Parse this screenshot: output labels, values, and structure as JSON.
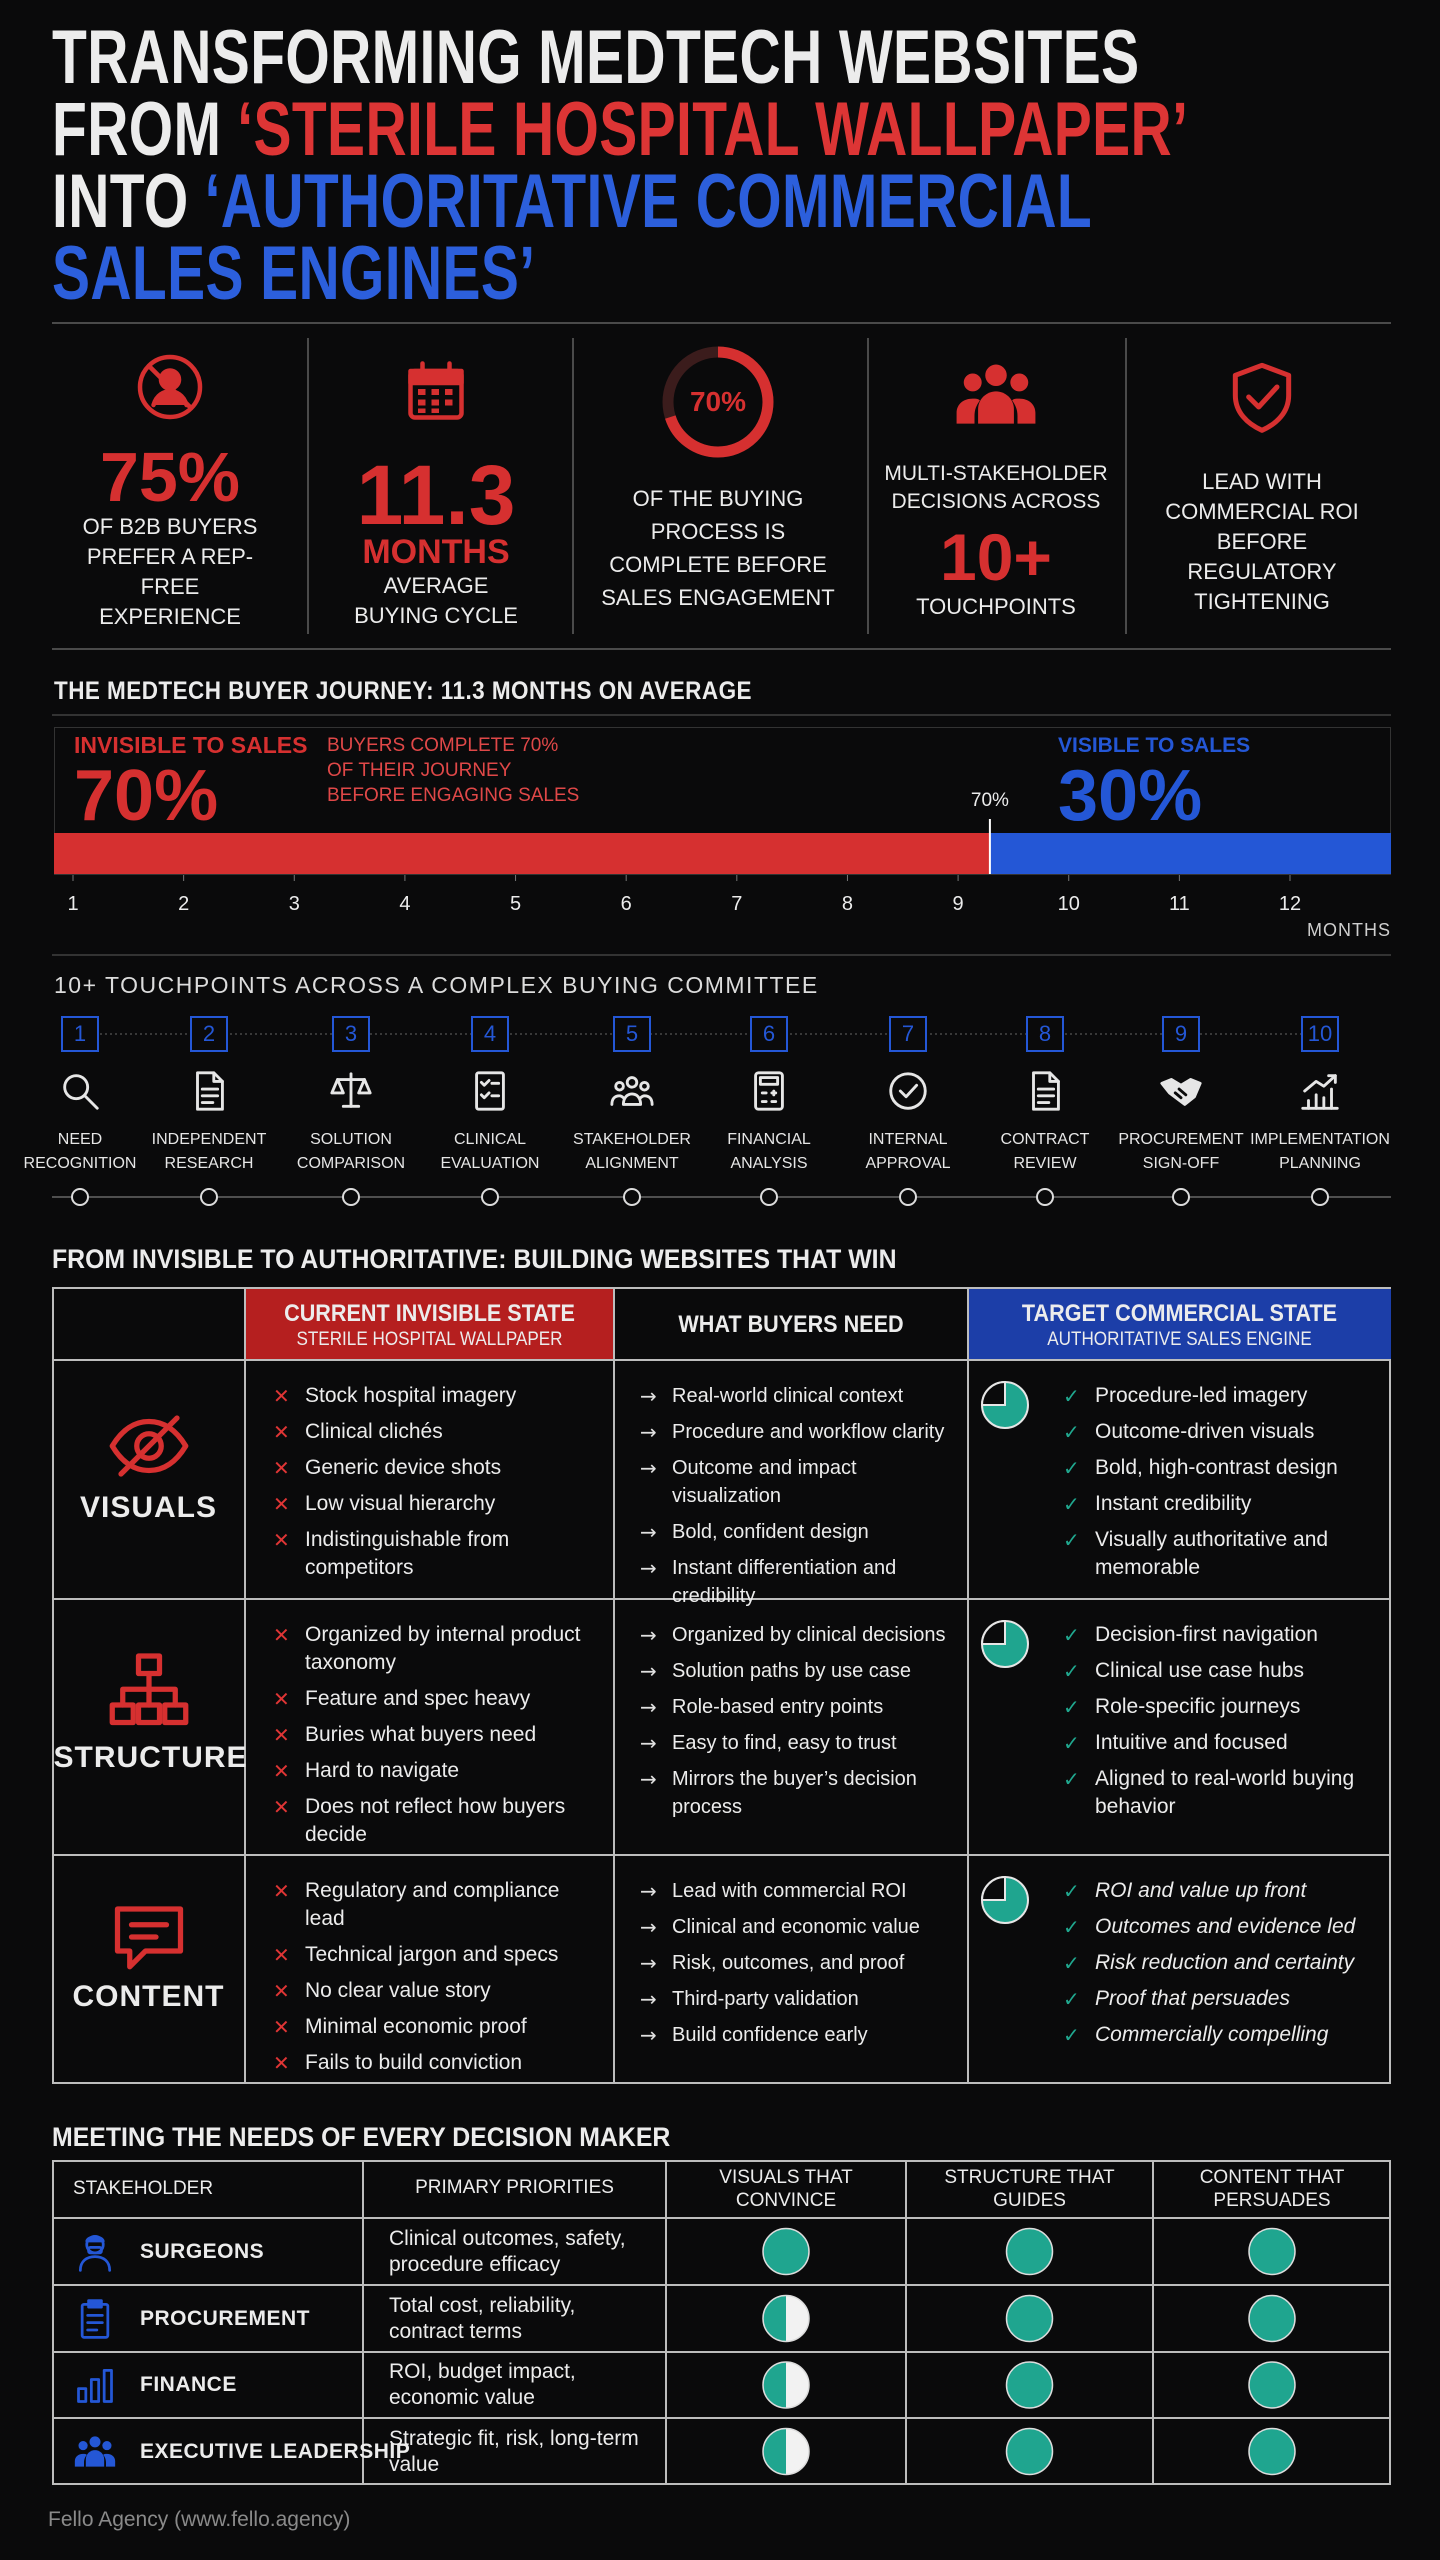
{
  "title": [
    {
      "text": "TRANSFORMING MEDTECH WEBSITES FROM",
      "color": "#ececec"
    },
    {
      "text": "‘STERILE HOSPITAL WALLPAPER’",
      "color": "#dd3535"
    },
    {
      "text": "INTO",
      "color": "#ececec"
    },
    {
      "text": "‘AUTHORITATIVE COMMERCIAL SALES ENGINES’",
      "color": "#2c5fdc"
    }
  ],
  "stats": [
    {
      "big": "75%",
      "text": "OF B2B BUYERS PREFER A REP-FREE EXPERIENCE"
    },
    {
      "big": "11.3",
      "unit": "MONTHS",
      "text": "AVERAGE BUYING CYCLE"
    },
    {
      "big": "70%",
      "gauge": 70,
      "text": "OF THE BUYING PROCESS IS COMPLETE BEFORE SALES ENGAGEMENT"
    },
    {
      "lead": "MULTI-STAKEHOLDER DECISIONS ACROSS",
      "big": "10+",
      "text": "TOUCHPOINTS"
    },
    {
      "text": "LEAD WITH COMMERCIAL ROI BEFORE REGULATORY TIGHTENING"
    }
  ],
  "journey": {
    "title": "THE MEDTECH BUYER JOURNEY: 11.3 MONTHS ON AVERAGE",
    "invisible": {
      "label": "INVISIBLE TO SALES",
      "value": 70,
      "value_label": "70%",
      "color": "#d63030"
    },
    "note": "BUYERS COMPLETE 70% OF THEIR JOURNEY BEFORE ENGAGING SALES",
    "marker": "70%",
    "visible": {
      "label": "VISIBLE TO SALES",
      "value": 30,
      "value_label": "30%",
      "color": "#2457d6"
    },
    "months": [
      1,
      2,
      3,
      4,
      5,
      6,
      7,
      8,
      9,
      10,
      11,
      12
    ],
    "months_label": "MONTHS"
  },
  "touchpoints": {
    "title": "10+ TOUCHPOINTS ACROSS A COMPLEX BUYING COMMITTEE",
    "steps": [
      {
        "n": 1,
        "label": "NEED RECOGNITION"
      },
      {
        "n": 2,
        "label": "INDEPENDENT RESEARCH"
      },
      {
        "n": 3,
        "label": "SOLUTION COMPARISON"
      },
      {
        "n": 4,
        "label": "CLINICAL EVALUATION"
      },
      {
        "n": 5,
        "label": "STAKEHOLDER ALIGNMENT"
      },
      {
        "n": 6,
        "label": "FINANCIAL ANALYSIS"
      },
      {
        "n": 7,
        "label": "INTERNAL APPROVAL"
      },
      {
        "n": 8,
        "label": "CONTRACT REVIEW"
      },
      {
        "n": 9,
        "label": "PROCUREMENT SIGN-OFF"
      },
      {
        "n": 10,
        "label": "IMPLEMENTATION PLANNING"
      }
    ]
  },
  "comparison": {
    "title": "FROM INVISIBLE TO AUTHORITATIVE: BUILDING WEBSITES THAT WIN",
    "columns": [
      {
        "title": "CURRENT INVISIBLE STATE",
        "subtitle": "STERILE HOSPITAL WALLPAPER"
      },
      {
        "title": "WHAT BUYERS NEED"
      },
      {
        "title": "TARGET COMMERCIAL STATE",
        "subtitle": "AUTHORITATIVE SALES ENGINE"
      }
    ],
    "rows": [
      {
        "label": "VISUALS",
        "current": [
          "Stock hospital imagery",
          "Clinical clichés",
          "Generic device shots",
          "Low visual hierarchy",
          "Indistinguishable from competitors"
        ],
        "needs": [
          "Real-world clinical context",
          "Procedure and workflow clarity",
          "Outcome and impact visualization",
          "Bold, confident design",
          "Instant differentiation and credibility"
        ],
        "target": [
          "Procedure-led imagery",
          "Outcome-driven visuals",
          "Bold, high-contrast design",
          "Instant credibility",
          "Visually authoritative and memorable"
        ]
      },
      {
        "label": "STRUCTURE",
        "current": [
          "Organized by internal product taxonomy",
          "Feature and spec heavy",
          "Buries what buyers need",
          "Hard to navigate",
          "Does not reflect how buyers decide"
        ],
        "needs": [
          "Organized by clinical decisions",
          "Solution paths by use case",
          "Role-based entry points",
          "Easy to find, easy to trust",
          "Mirrors the buyer’s decision process"
        ],
        "target": [
          "Decision-first navigation",
          "Clinical use case hubs",
          "Role-specific journeys",
          "Intuitive and focused",
          "Aligned to real-world buying behavior"
        ]
      },
      {
        "label": "CONTENT",
        "current": [
          "Regulatory and compliance lead",
          "Technical jargon and specs",
          "No clear value story",
          "Minimal economic proof",
          "Fails to build conviction"
        ],
        "needs": [
          "Lead with commercial ROI",
          "Clinical and economic value",
          "Risk, outcomes, and proof",
          "Third-party validation",
          "Build confidence early"
        ],
        "target": [
          "ROI and value up front",
          "Outcomes and evidence led",
          "Risk reduction and certainty",
          "Proof that persuades",
          "Commercially compelling"
        ],
        "target_italic": true
      }
    ]
  },
  "stakeholders": {
    "title": "MEETING THE NEEDS OF EVERY DECISION MAKER",
    "headers": [
      "STAKEHOLDER",
      "PRIMARY PRIORITIES",
      "VISUALS THAT CONVINCE",
      "STRUCTURE THAT GUIDES",
      "CONTENT THAT PERSUADES"
    ],
    "rows": [
      {
        "name": "SURGEONS",
        "priorities": "Clinical outcomes, safety, procedure efficacy",
        "ratings": [
          1,
          1,
          1
        ]
      },
      {
        "name": "PROCUREMENT",
        "priorities": "Total cost, reliability, contract terms",
        "ratings": [
          0.5,
          1,
          1
        ]
      },
      {
        "name": "FINANCE",
        "priorities": "ROI, budget impact, economic value",
        "ratings": [
          0.5,
          1,
          1
        ]
      },
      {
        "name": "EXECUTIVE LEADERSHIP",
        "priorities": "Strategic fit, risk, long-term value",
        "ratings": [
          0.5,
          1,
          1
        ]
      }
    ]
  },
  "footer": "Fello Agency (www.fello.agency)"
}
